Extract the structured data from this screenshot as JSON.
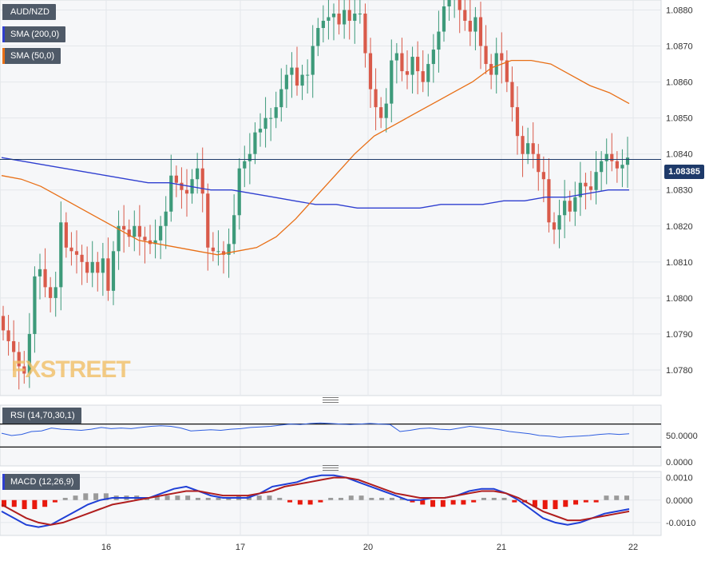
{
  "chart_data": [
    {
      "type": "candlestick",
      "legend": [
        {
          "label": "AUD/NZD",
          "color": "#4f5a68"
        },
        {
          "label": "SMA (200,0)",
          "color": "#2f3fd0"
        },
        {
          "label": "SMA (50,0)",
          "color": "#e86f16"
        }
      ],
      "current_price": "1.08385",
      "watermark": "FXSTREET",
      "y_ticks": [
        "1.0780",
        "1.0790",
        "1.0800",
        "1.0810",
        "1.0820",
        "1.0830",
        "1.0840",
        "1.0850",
        "1.0860",
        "1.0870",
        "1.0880"
      ],
      "ylim": [
        1.0774,
        1.0881
      ],
      "x_ticks": [
        "16",
        "17",
        "20",
        "21",
        "22"
      ],
      "up_color": "#3d9a7a",
      "down_color": "#d95a4a",
      "candles_close": [
        1.0791,
        1.0788,
        1.0785,
        1.0781,
        1.0779,
        1.079,
        1.0806,
        1.0808,
        1.0803,
        1.08,
        1.0803,
        1.0821,
        1.0814,
        1.0813,
        1.0812,
        1.081,
        1.0807,
        1.081,
        1.0807,
        1.0811,
        1.0802,
        1.0813,
        1.082,
        1.0819,
        1.0817,
        1.082,
        1.0817,
        1.0816,
        1.0815,
        1.0816,
        1.082,
        1.0824,
        1.0834,
        1.0832,
        1.083,
        1.0829,
        1.0833,
        1.0836,
        1.0829,
        1.0814,
        1.0813,
        1.0813,
        1.0812,
        1.0815,
        1.0823,
        1.0836,
        1.0838,
        1.084,
        1.0846,
        1.0847,
        1.085,
        1.085,
        1.0853,
        1.0858,
        1.0862,
        1.0864,
        1.0859,
        1.0862,
        1.0862,
        1.087,
        1.0875,
        1.0877,
        1.0878,
        1.0879,
        1.0876,
        1.088,
        1.0877,
        1.0879,
        1.0879,
        1.0868,
        1.0858,
        1.0853,
        1.085,
        1.0854,
        1.0866,
        1.0868,
        1.0863,
        1.0862,
        1.0867,
        1.0863,
        1.086,
        1.0865,
        1.0869,
        1.0874,
        1.0881,
        1.0883,
        1.0886,
        1.088,
        1.0877,
        1.0874,
        1.0878,
        1.087,
        1.0865,
        1.0862,
        1.0868,
        1.0866,
        1.086,
        1.0853,
        1.0845,
        1.084,
        1.0843,
        1.084,
        1.0835,
        1.0833,
        1.0821,
        1.0819,
        1.0823,
        1.0827,
        1.0824,
        1.0828,
        1.0832,
        1.0831,
        1.083,
        1.0835,
        1.0838,
        1.084,
        1.0838,
        1.0836,
        1.0837,
        1.0839
      ],
      "sma200": [
        1.0839,
        1.0838,
        1.0837,
        1.0836,
        1.0835,
        1.0834,
        1.0833,
        1.0832,
        1.0832,
        1.0831,
        1.083,
        1.083,
        1.0829,
        1.0828,
        1.0827,
        1.0826,
        1.0826,
        1.0825,
        1.0825,
        1.0825,
        1.0825,
        1.0826,
        1.0826,
        1.0826,
        1.0827,
        1.0827,
        1.0828,
        1.0828,
        1.0829,
        1.083,
        1.083
      ],
      "sma50": [
        1.0834,
        1.0833,
        1.0831,
        1.0828,
        1.0825,
        1.0822,
        1.0819,
        1.0816,
        1.0815,
        1.0814,
        1.0813,
        1.0812,
        1.0813,
        1.0814,
        1.0817,
        1.0822,
        1.0828,
        1.0834,
        1.084,
        1.0845,
        1.0848,
        1.0851,
        1.0854,
        1.0857,
        1.086,
        1.0864,
        1.0866,
        1.0866,
        1.0865,
        1.0862,
        1.0859,
        1.0857,
        1.0854
      ]
    },
    {
      "type": "line",
      "legend": {
        "label": "RSI (14,70,30,1)",
        "color": "#4f5a68"
      },
      "y_ticks": [
        "50.0000",
        "0.0000"
      ],
      "series": [
        {
          "values": [
            54,
            50,
            52,
            57,
            58,
            63,
            61,
            60,
            59,
            61,
            64,
            62,
            63,
            62,
            64,
            66,
            67,
            66,
            63,
            58,
            59,
            60,
            59,
            61,
            62,
            64,
            65,
            66,
            68,
            70,
            69,
            71,
            72,
            71,
            70,
            69,
            70,
            71,
            70,
            69,
            57,
            59,
            62,
            63,
            61,
            60,
            63,
            66,
            64,
            62,
            60,
            57,
            55,
            53,
            50,
            49,
            47,
            48,
            49,
            50,
            52,
            53,
            52,
            53
          ]
        }
      ],
      "upper_level": 70,
      "lower_level": 30
    },
    {
      "type": "bar_line",
      "legend": {
        "label": "MACD (12,26,9)",
        "color": "#2f3fd0"
      },
      "y_ticks": [
        "0.0010",
        "0.0000",
        "-0.0010"
      ],
      "ylim": [
        -0.0015,
        0.0012
      ],
      "histogram": [
        -0.0003,
        -0.0003,
        -0.0004,
        -0.0004,
        -0.0003,
        -0.0001,
        0.0001,
        0.0002,
        0.0003,
        0.0003,
        0.0003,
        0.0002,
        0.0002,
        0.0002,
        0.0001,
        0.0002,
        0.0002,
        0.0002,
        0.0002,
        0.0001,
        0.0001,
        0.0001,
        0.0001,
        0.0002,
        0.0002,
        0.0002,
        0.0002,
        0.0001,
        -0.0001,
        -0.0002,
        -0.0002,
        -0.0001,
        0.0001,
        0.0001,
        0.0002,
        0.0002,
        0.0001,
        0.0001,
        0.0001,
        0.0001,
        -0.0001,
        -0.0002,
        -0.0003,
        -0.0003,
        -0.0002,
        -0.0002,
        -0.0001,
        0.0001,
        0.0001,
        0.0001,
        -0.0001,
        -0.0001,
        -0.0003,
        -0.0004,
        -0.0004,
        -0.0003,
        -0.0002,
        -0.0001,
        -0.0001,
        0.0002,
        0.0002,
        0.0002
      ],
      "series": [
        {
          "values": [
            -0.0005,
            -0.0008,
            -0.0011,
            -0.0012,
            -0.0011,
            -0.0008,
            -0.0005,
            -0.0002,
            0.0,
            0.0001,
            0.0001,
            0.0001,
            0.0001,
            0.0003,
            0.0005,
            0.0006,
            0.0004,
            0.0002,
            0.0001,
            0.0001,
            0.0001,
            0.0003,
            0.0006,
            0.0007,
            0.0008,
            0.001,
            0.0011,
            0.0011,
            0.001,
            0.0008,
            0.0006,
            0.0004,
            0.0002,
            0.0,
            0.0,
            0.0001,
            0.0001,
            0.0002,
            0.0004,
            0.0005,
            0.0005,
            0.0003,
            0.0,
            -0.0004,
            -0.0008,
            -0.001,
            -0.0011,
            -0.001,
            -0.0008,
            -0.0006,
            -0.0005,
            -0.0004
          ],
          "color": "#1f3fd6"
        },
        {
          "values": [
            -0.0002,
            -0.0005,
            -0.0008,
            -0.001,
            -0.0011,
            -0.001,
            -0.0008,
            -0.0006,
            -0.0004,
            -0.0002,
            -0.0001,
            0.0,
            0.0001,
            0.0002,
            0.0003,
            0.0004,
            0.0004,
            0.0003,
            0.0002,
            0.0002,
            0.0002,
            0.0003,
            0.0004,
            0.0006,
            0.0007,
            0.0008,
            0.0009,
            0.001,
            0.001,
            0.0009,
            0.0007,
            0.0005,
            0.0003,
            0.0002,
            0.0001,
            0.0001,
            0.0001,
            0.0002,
            0.0003,
            0.0004,
            0.0004,
            0.0003,
            0.0001,
            -0.0002,
            -0.0005,
            -0.0007,
            -0.0009,
            -0.0009,
            -0.0008,
            -0.0007,
            -0.0006,
            -0.0005
          ],
          "color": "#b01e1e"
        }
      ]
    }
  ]
}
